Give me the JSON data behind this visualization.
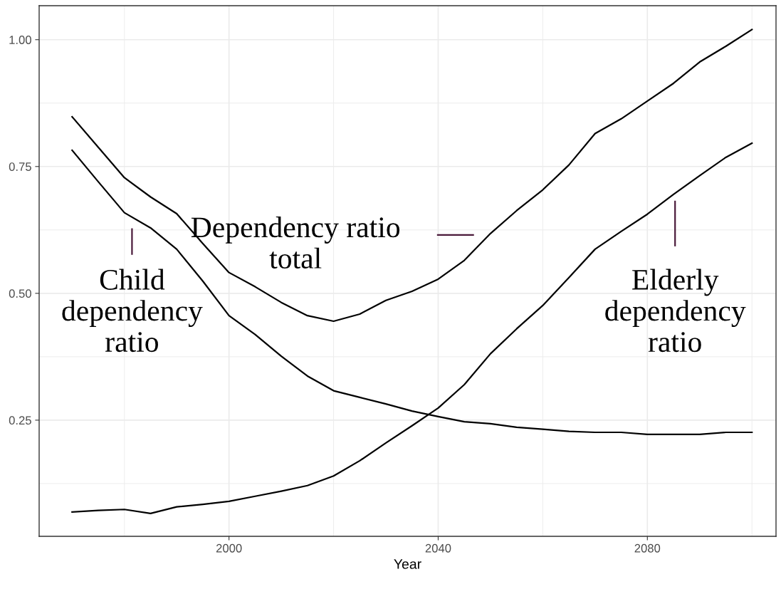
{
  "chart_data": {
    "type": "line",
    "xlabel": "Year",
    "x": [
      1970,
      1975,
      1980,
      1985,
      1990,
      1995,
      2000,
      2005,
      2010,
      2015,
      2020,
      2025,
      2030,
      2035,
      2040,
      2045,
      2050,
      2055,
      2060,
      2065,
      2070,
      2075,
      2080,
      2085,
      2090,
      2095,
      2100
    ],
    "series": [
      {
        "color": "#000000",
        "values": [
          0.848,
          0.788,
          0.728,
          0.69,
          0.657,
          0.598,
          0.541,
          0.513,
          0.482,
          0.456,
          0.445,
          0.459,
          0.486,
          0.504,
          0.528,
          0.565,
          0.618,
          0.663,
          0.704,
          0.753,
          0.815,
          0.844,
          0.879,
          0.914,
          0.956,
          0.987,
          1.02
        ]
      },
      {
        "color": "#000000",
        "values": [
          0.782,
          0.72,
          0.659,
          0.629,
          0.587,
          0.524,
          0.456,
          0.419,
          0.376,
          0.337,
          0.308,
          0.295,
          0.282,
          0.268,
          0.257,
          0.247,
          0.243,
          0.236,
          0.232,
          0.228,
          0.226,
          0.226,
          0.222,
          0.222,
          0.222,
          0.226,
          0.226
        ]
      },
      {
        "color": "#000000",
        "values": [
          0.069,
          0.072,
          0.074,
          0.066,
          0.079,
          0.084,
          0.09,
          0.1,
          0.11,
          0.121,
          0.14,
          0.17,
          0.205,
          0.239,
          0.274,
          0.32,
          0.381,
          0.43,
          0.476,
          0.531,
          0.587,
          0.622,
          0.656,
          0.695,
          0.732,
          0.768,
          0.796
        ]
      }
    ],
    "annotations": [
      "Child\ndependency\nratio",
      "Dependency ratio\ntotal",
      "Elderly\ndependency\nratio"
    ],
    "xlim": [
      1963.7,
      2104.6
    ],
    "xticks": [
      2000,
      2040,
      2080
    ],
    "ylim": [
      0.021,
      1.067
    ],
    "yticks": [
      {
        "value": 0.25,
        "label": "0.25"
      },
      {
        "value": 0.5,
        "label": "0.50"
      },
      {
        "value": 0.75,
        "label": "0.75"
      },
      {
        "value": 1.0,
        "label": "1.00"
      }
    ],
    "grid": true,
    "legend": false,
    "marker": "none",
    "line_style": "solid"
  }
}
